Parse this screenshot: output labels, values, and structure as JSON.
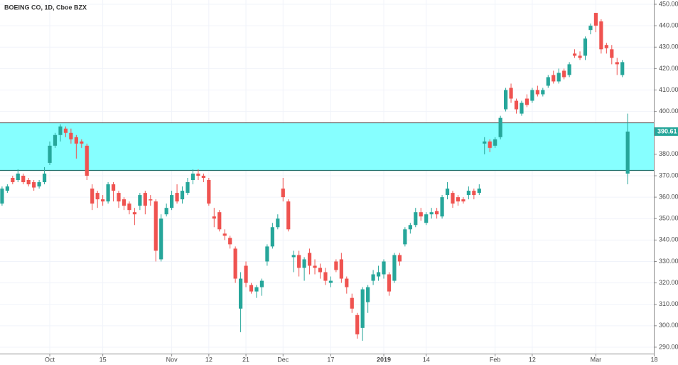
{
  "chart_data": {
    "type": "candlestick",
    "title": "BOEING CO, 1D, Cboe BZX",
    "up_color": "#26a69a",
    "down_color": "#ef5350",
    "zone": {
      "lower": 372.5,
      "upper": 394.7,
      "color": "#80ffff"
    },
    "last_price": 390.61,
    "ylim": [
      287,
      452
    ],
    "yticks": [
      {
        "value": 290,
        "label": "290.00"
      },
      {
        "value": 300,
        "label": "300.00"
      },
      {
        "value": 310,
        "label": "310.00"
      },
      {
        "value": 320,
        "label": "320.00"
      },
      {
        "value": 330,
        "label": "330.00"
      },
      {
        "value": 340,
        "label": "340.00"
      },
      {
        "value": 350,
        "label": "350.00"
      },
      {
        "value": 360,
        "label": "360.00"
      },
      {
        "value": 370,
        "label": "370.00"
      },
      {
        "value": 380,
        "label": "380.00"
      },
      {
        "value": 390,
        "label": "390.00"
      },
      {
        "value": 400,
        "label": "400.00"
      },
      {
        "value": 410,
        "label": "410.00"
      },
      {
        "value": 420,
        "label": "420.00"
      },
      {
        "value": 430,
        "label": "430.00"
      },
      {
        "value": 440,
        "label": "440.00"
      },
      {
        "value": 450,
        "label": "450.00"
      }
    ],
    "grid": true,
    "categories": [
      null,
      null,
      null,
      null,
      null,
      null,
      null,
      null,
      null,
      "Oct",
      null,
      null,
      null,
      null,
      null,
      null,
      null,
      null,
      null,
      "15",
      null,
      null,
      null,
      null,
      null,
      null,
      null,
      null,
      null,
      null,
      null,
      null,
      "Nov",
      null,
      null,
      null,
      null,
      null,
      null,
      "12",
      null,
      null,
      null,
      null,
      null,
      null,
      "21",
      null,
      null,
      null,
      null,
      null,
      null,
      "Dec",
      null,
      null,
      null,
      null,
      null,
      null,
      null,
      null,
      "17",
      null,
      null,
      null,
      null,
      null,
      null,
      null,
      null,
      null,
      "2019",
      null,
      null,
      null,
      null,
      null,
      null,
      null,
      "14",
      null,
      null,
      null,
      null,
      null,
      null,
      null,
      null,
      null,
      null,
      null,
      null,
      "Feb",
      null,
      null,
      null,
      null,
      null,
      null,
      "12",
      null,
      null,
      null,
      null,
      null,
      null,
      null,
      null,
      null,
      null,
      null,
      "Mar",
      null,
      null,
      null,
      null,
      null,
      null,
      null,
      null,
      null,
      null,
      "18"
    ],
    "candles": [
      [
        357,
        365,
        356,
        364
      ],
      [
        363,
        366,
        362,
        365
      ],
      [
        369,
        370,
        366,
        367
      ],
      [
        368,
        373,
        367,
        371
      ],
      [
        370,
        371,
        366,
        367
      ],
      [
        368,
        369,
        365,
        366
      ],
      [
        367,
        368,
        363,
        364.5
      ],
      [
        365,
        368,
        364,
        367
      ],
      [
        367,
        374,
        366,
        371
      ],
      [
        376,
        386,
        375,
        384
      ],
      [
        384,
        390,
        383,
        389
      ],
      [
        389,
        394,
        386,
        393
      ],
      [
        392,
        393,
        388,
        390
      ],
      [
        390,
        392,
        385,
        387
      ],
      [
        388,
        389,
        378,
        385
      ],
      [
        386,
        387,
        383,
        385
      ],
      [
        384,
        385,
        368,
        370
      ],
      [
        364,
        366,
        354,
        357
      ],
      [
        362,
        363,
        355,
        359
      ],
      [
        359,
        361,
        356,
        358
      ],
      [
        358,
        367,
        357,
        366
      ],
      [
        366,
        367,
        358,
        363
      ],
      [
        362,
        363,
        355,
        358
      ],
      [
        359,
        360,
        354,
        356
      ],
      [
        357,
        358,
        352,
        354
      ],
      [
        353,
        355,
        347,
        352
      ],
      [
        356,
        362,
        354,
        361
      ],
      [
        362,
        363,
        352,
        356
      ],
      [
        359,
        361,
        356,
        358.5
      ],
      [
        358,
        359,
        330,
        335
      ],
      [
        331,
        352,
        330,
        350
      ],
      [
        352,
        357,
        351,
        355
      ],
      [
        355,
        363,
        354,
        361
      ],
      [
        362,
        366,
        357,
        358
      ],
      [
        359,
        365,
        357,
        363
      ],
      [
        362,
        369,
        361,
        367
      ],
      [
        368,
        373,
        366,
        371
      ],
      [
        371,
        373,
        368,
        370
      ],
      [
        370,
        371,
        367,
        369
      ],
      [
        368,
        369,
        356,
        357
      ],
      [
        351,
        355,
        346,
        350
      ],
      [
        353,
        354,
        344,
        345
      ],
      [
        343,
        345,
        340,
        342
      ],
      [
        341,
        342,
        336,
        338
      ],
      [
        336,
        337,
        320,
        322
      ],
      [
        308,
        325,
        297,
        322
      ],
      [
        328,
        330,
        318,
        320
      ],
      [
        319,
        320,
        315,
        316
      ],
      [
        316,
        319,
        313,
        318
      ],
      [
        318,
        322,
        314,
        321
      ],
      [
        330,
        338,
        328,
        337
      ],
      [
        337,
        348,
        336,
        346
      ],
      [
        346,
        352,
        345,
        350
      ],
      [
        364,
        369,
        358,
        360
      ],
      [
        358,
        359,
        344,
        345
      ],
      [
        332,
        335,
        325,
        333
      ],
      [
        333,
        335,
        323,
        327
      ],
      [
        327,
        332,
        321,
        331
      ],
      [
        334,
        336,
        324,
        328
      ],
      [
        328,
        331,
        324,
        327
      ],
      [
        327,
        329,
        322,
        325
      ],
      [
        325,
        327,
        319,
        321
      ],
      [
        320,
        323,
        318,
        321
      ],
      [
        330,
        331,
        325,
        326
      ],
      [
        331,
        334,
        320,
        322
      ],
      [
        322,
        323,
        315,
        318
      ],
      [
        313,
        315,
        306,
        308
      ],
      [
        305,
        306,
        294,
        296
      ],
      [
        299,
        318,
        293,
        317
      ],
      [
        311,
        319,
        306,
        318
      ],
      [
        321,
        326,
        319,
        324
      ],
      [
        323,
        328,
        321,
        325
      ],
      [
        324,
        331,
        322,
        330
      ],
      [
        324,
        325,
        314,
        316
      ],
      [
        321,
        334,
        320,
        333
      ],
      [
        333,
        334,
        328,
        330
      ],
      [
        338,
        346,
        337,
        345
      ],
      [
        345,
        348,
        343,
        347
      ],
      [
        347,
        355,
        346,
        353
      ],
      [
        353,
        355,
        349,
        351
      ],
      [
        348,
        353,
        347,
        352
      ],
      [
        352,
        355,
        350,
        353
      ],
      [
        353.5,
        355,
        350,
        352
      ],
      [
        351,
        361,
        350,
        360
      ],
      [
        361,
        367,
        359,
        364
      ],
      [
        362,
        363,
        355,
        357
      ],
      [
        360,
        361,
        356,
        358
      ],
      [
        359,
        360,
        357,
        358
      ],
      [
        361,
        365,
        359,
        363
      ],
      [
        363,
        364,
        359,
        361
      ],
      [
        362,
        366,
        361,
        364
      ],
      [
        385,
        388,
        380,
        386
      ],
      [
        386,
        387,
        381,
        383
      ],
      [
        384,
        388,
        383,
        387
      ],
      [
        388,
        398,
        387,
        397
      ],
      [
        401,
        411,
        400,
        410
      ],
      [
        411,
        413,
        404,
        406
      ],
      [
        405,
        406,
        399,
        401
      ],
      [
        399,
        405,
        398,
        404
      ],
      [
        406,
        408,
        402,
        403
      ],
      [
        405,
        411,
        404,
        410
      ],
      [
        410,
        412,
        407,
        408
      ],
      [
        408,
        411,
        407,
        410
      ],
      [
        412,
        417,
        411,
        416
      ],
      [
        417,
        419,
        413,
        414
      ],
      [
        414,
        420,
        413,
        418
      ],
      [
        419,
        420,
        415,
        416
      ],
      [
        417,
        423,
        416,
        422
      ],
      [
        427,
        429,
        425,
        426
      ],
      [
        426,
        428,
        424,
        425
      ],
      [
        426,
        435,
        424,
        434
      ],
      [
        438,
        441,
        436,
        440
      ],
      [
        446,
        446,
        437,
        440
      ],
      [
        442,
        443,
        427,
        429
      ],
      [
        431,
        432,
        427,
        429.5
      ],
      [
        429,
        431,
        422,
        425
      ],
      [
        423,
        425,
        417,
        422
      ],
      [
        417,
        424,
        416,
        423
      ],
      [
        371,
        399,
        366,
        390.61
      ],
      null,
      null,
      null,
      null,
      null
    ]
  }
}
